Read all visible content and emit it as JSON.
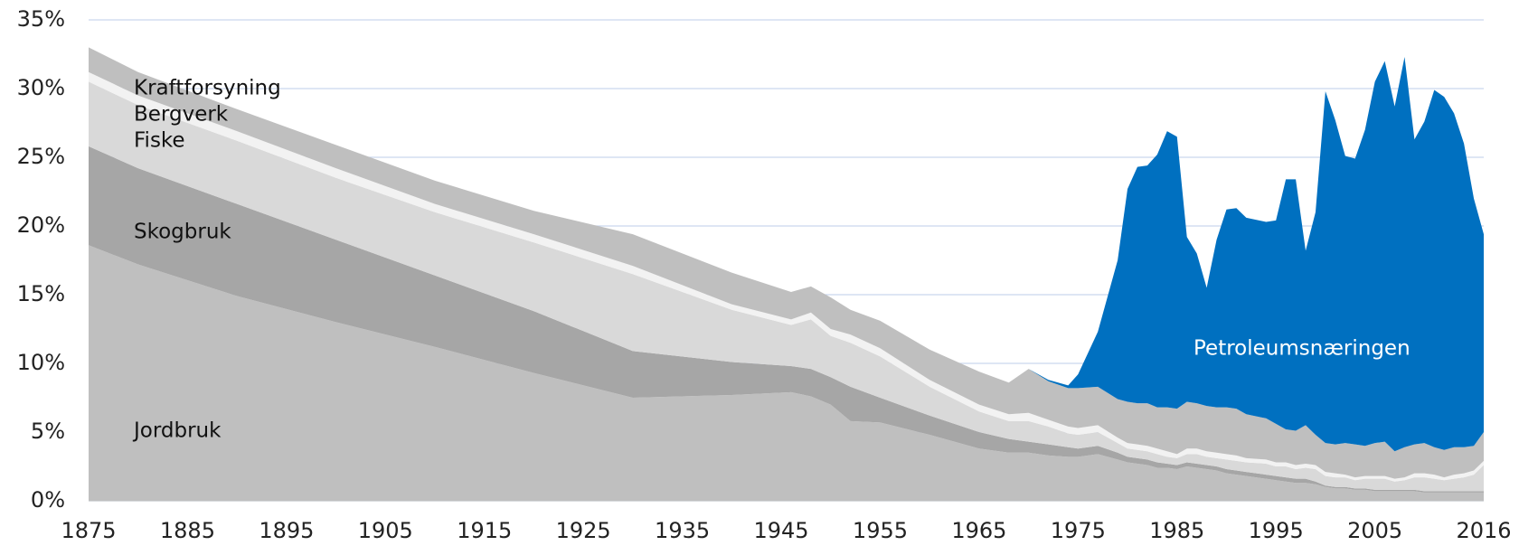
{
  "chart_data": {
    "type": "stacked_area",
    "x": [
      1875,
      1880,
      1890,
      1900,
      1910,
      1920,
      1930,
      1940,
      1946,
      1948,
      1950,
      1952,
      1955,
      1960,
      1965,
      1968,
      1970,
      1972,
      1974,
      1975,
      1977,
      1979,
      1980,
      1981,
      1982,
      1983,
      1984,
      1985,
      1986,
      1987,
      1988,
      1989,
      1990,
      1991,
      1992,
      1994,
      1995,
      1996,
      1997,
      1998,
      1999,
      2000,
      2001,
      2002,
      2003,
      2004,
      2005,
      2006,
      2007,
      2008,
      2009,
      2010,
      2011,
      2012,
      2013,
      2014,
      2015,
      2016
    ],
    "series": [
      {
        "name": "Jordbruk",
        "color": "#bfbfbf",
        "values": [
          18.6,
          17.2,
          14.9,
          13.0,
          11.2,
          9.3,
          7.5,
          7.7,
          7.9,
          7.6,
          7.0,
          5.8,
          5.7,
          4.8,
          3.8,
          3.5,
          3.5,
          3.3,
          3.2,
          3.2,
          3.4,
          3.0,
          2.8,
          2.7,
          2.6,
          2.4,
          2.4,
          2.3,
          2.5,
          2.4,
          2.3,
          2.2,
          2.0,
          1.9,
          1.8,
          1.6,
          1.5,
          1.4,
          1.3,
          1.3,
          1.2,
          1.0,
          0.9,
          0.9,
          0.8,
          0.8,
          0.7,
          0.7,
          0.7,
          0.7,
          0.7,
          0.6,
          0.6,
          0.6,
          0.6,
          0.6,
          0.6,
          0.6
        ]
      },
      {
        "name": "Skogbruk",
        "color": "#a6a6a6",
        "values": [
          7.2,
          7.0,
          6.7,
          6.0,
          5.2,
          4.5,
          3.4,
          2.4,
          1.9,
          2.0,
          2.0,
          2.5,
          1.8,
          1.4,
          1.2,
          1.0,
          0.8,
          0.8,
          0.7,
          0.6,
          0.6,
          0.5,
          0.4,
          0.4,
          0.4,
          0.4,
          0.3,
          0.3,
          0.3,
          0.3,
          0.3,
          0.3,
          0.3,
          0.3,
          0.3,
          0.3,
          0.3,
          0.3,
          0.3,
          0.3,
          0.2,
          0.1,
          0.1,
          0.1,
          0.1,
          0.1,
          0.1,
          0.1,
          0.1,
          0.1,
          0.1,
          0.1,
          0.1,
          0.1,
          0.1,
          0.1,
          0.1,
          0.1
        ]
      },
      {
        "name": "Fiske",
        "color": "#d9d9d9",
        "values": [
          4.7,
          4.6,
          4.6,
          4.5,
          4.6,
          5.0,
          5.6,
          3.8,
          3.0,
          3.6,
          3.0,
          3.2,
          3.0,
          2.1,
          1.5,
          1.3,
          1.5,
          1.3,
          1.0,
          1.0,
          1.0,
          0.7,
          0.6,
          0.6,
          0.6,
          0.6,
          0.5,
          0.5,
          0.6,
          0.7,
          0.6,
          0.6,
          0.7,
          0.7,
          0.7,
          0.8,
          0.7,
          0.8,
          0.7,
          0.8,
          0.9,
          0.7,
          0.7,
          0.7,
          0.6,
          0.7,
          0.8,
          0.8,
          0.6,
          0.7,
          0.9,
          1.0,
          0.9,
          0.8,
          0.9,
          1.0,
          1.2,
          1.9
        ]
      },
      {
        "name": "Bergverk",
        "color": "#f2f2f2",
        "values": [
          0.7,
          0.7,
          0.7,
          0.7,
          0.6,
          0.6,
          0.6,
          0.4,
          0.4,
          0.5,
          0.5,
          0.6,
          0.6,
          0.5,
          0.5,
          0.5,
          0.6,
          0.5,
          0.5,
          0.5,
          0.5,
          0.4,
          0.4,
          0.4,
          0.4,
          0.4,
          0.4,
          0.3,
          0.4,
          0.4,
          0.4,
          0.4,
          0.4,
          0.4,
          0.3,
          0.3,
          0.3,
          0.3,
          0.3,
          0.3,
          0.3,
          0.3,
          0.3,
          0.2,
          0.2,
          0.2,
          0.2,
          0.2,
          0.2,
          0.2,
          0.3,
          0.3,
          0.3,
          0.2,
          0.3,
          0.3,
          0.3,
          0.3
        ]
      },
      {
        "name": "Kraftforsyning",
        "color": "#bfbfbf",
        "values": [
          1.8,
          1.7,
          1.6,
          1.7,
          1.7,
          1.7,
          2.3,
          2.3,
          2.0,
          1.9,
          2.3,
          1.8,
          2.0,
          2.2,
          2.4,
          2.3,
          3.2,
          2.8,
          2.8,
          2.9,
          2.8,
          2.8,
          3.0,
          3.0,
          3.1,
          3.0,
          3.2,
          3.3,
          3.4,
          3.3,
          3.3,
          3.3,
          3.4,
          3.4,
          3.2,
          3.0,
          2.8,
          2.4,
          2.5,
          2.8,
          2.2,
          2.1,
          2.1,
          2.3,
          2.4,
          2.2,
          2.4,
          2.5,
          2.0,
          2.2,
          2.1,
          2.2,
          2.0,
          2.0,
          2.0,
          1.9,
          1.8,
          2.1
        ]
      },
      {
        "name": "Petroleumsnæringen",
        "color": "#0070c0",
        "values": [
          0,
          0,
          0,
          0,
          0,
          0,
          0,
          0,
          0,
          0,
          0,
          0,
          0,
          0,
          0,
          0,
          0,
          0.1,
          0.2,
          1.0,
          4.0,
          10.1,
          15.5,
          17.2,
          17.3,
          18.4,
          20.1,
          19.8,
          12.0,
          10.9,
          8.6,
          12.2,
          14.4,
          14.6,
          14.3,
          14.3,
          14.8,
          18.2,
          18.3,
          12.7,
          16.2,
          25.6,
          23.6,
          20.9,
          20.8,
          23.0,
          26.3,
          27.7,
          25.1,
          28.4,
          22.2,
          23.4,
          26.0,
          25.7,
          24.3,
          22.1,
          18.0,
          14.4
        ]
      }
    ],
    "xlim": [
      1875,
      2016
    ],
    "xticks": [
      1875,
      1885,
      1895,
      1905,
      1915,
      1925,
      1935,
      1945,
      1955,
      1965,
      1975,
      1985,
      1995,
      2005,
      2016
    ],
    "ylim": [
      0,
      35
    ],
    "yticks": [
      {
        "value": 0,
        "label": "0%"
      },
      {
        "value": 5,
        "label": "5%"
      },
      {
        "value": 10,
        "label": "10%"
      },
      {
        "value": 15,
        "label": "15%"
      },
      {
        "value": 20,
        "label": "20%"
      },
      {
        "value": 25,
        "label": "25%"
      },
      {
        "value": 30,
        "label": "30%"
      },
      {
        "value": 35,
        "label": "35%"
      }
    ],
    "grid": true
  }
}
